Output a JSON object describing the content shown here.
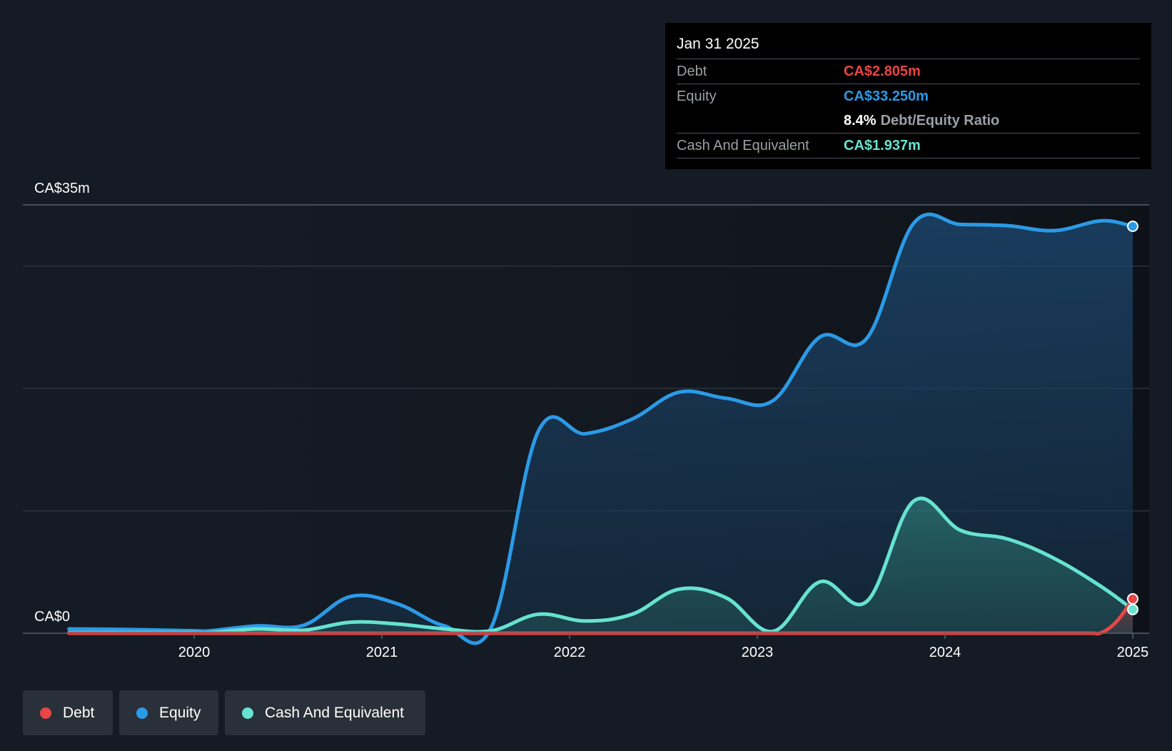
{
  "chart_data": {
    "type": "area",
    "y_axis": {
      "top_label": "CA$35m",
      "bottom_label": "CA$0",
      "ylim": [
        0,
        35
      ]
    },
    "x_ticks": [
      "2020",
      "2021",
      "2022",
      "2023",
      "2024",
      "2025"
    ],
    "grid": true,
    "series": [
      {
        "name": "Debt",
        "color": "#e84545",
        "points": [
          [
            "2019-05",
            0.0
          ],
          [
            "2020-01",
            0.0
          ],
          [
            "2020-05",
            0.0
          ],
          [
            "2020-09",
            0.0
          ],
          [
            "2021-01",
            0.0
          ],
          [
            "2021-05",
            0.0
          ],
          [
            "2021-09",
            0.0
          ],
          [
            "2022-01",
            0.0
          ],
          [
            "2022-05",
            0.0
          ],
          [
            "2022-09",
            0.0
          ],
          [
            "2023-01",
            0.0
          ],
          [
            "2023-05",
            0.0
          ],
          [
            "2023-09",
            0.0
          ],
          [
            "2024-01",
            0.0
          ],
          [
            "2024-05",
            0.0
          ],
          [
            "2024-10",
            0.0
          ],
          [
            "2024-11",
            0.05
          ],
          [
            "2024-12",
            1.0
          ],
          [
            "2025-01",
            2.805
          ]
        ]
      },
      {
        "name": "Equity",
        "color": "#2b9ae6",
        "points": [
          [
            "2019-05",
            0.35
          ],
          [
            "2019-09",
            0.3
          ],
          [
            "2020-01",
            0.2
          ],
          [
            "2020-02",
            0.2
          ],
          [
            "2020-05",
            0.6
          ],
          [
            "2020-08",
            0.65
          ],
          [
            "2020-11",
            3.0
          ],
          [
            "2021-02",
            2.4
          ],
          [
            "2021-05",
            0.6
          ],
          [
            "2021-08",
            0.5
          ],
          [
            "2021-11",
            16.5
          ],
          [
            "2022-02",
            16.3
          ],
          [
            "2022-05",
            17.5
          ],
          [
            "2022-08",
            19.7
          ],
          [
            "2022-11",
            19.2
          ],
          [
            "2023-02",
            19.0
          ],
          [
            "2023-05",
            24.2
          ],
          [
            "2023-08",
            24.1
          ],
          [
            "2023-11",
            33.5
          ],
          [
            "2024-02",
            33.4
          ],
          [
            "2024-05",
            33.3
          ],
          [
            "2024-08",
            32.9
          ],
          [
            "2024-11",
            33.7
          ],
          [
            "2025-01",
            33.25
          ]
        ]
      },
      {
        "name": "Cash And Equivalent",
        "color": "#66e3d0",
        "points": [
          [
            "2019-05",
            0.05
          ],
          [
            "2019-09",
            0.05
          ],
          [
            "2020-01",
            0.05
          ],
          [
            "2020-02",
            0.05
          ],
          [
            "2020-05",
            0.35
          ],
          [
            "2020-08",
            0.25
          ],
          [
            "2020-11",
            0.9
          ],
          [
            "2021-02",
            0.75
          ],
          [
            "2021-05",
            0.35
          ],
          [
            "2021-08",
            0.2
          ],
          [
            "2021-11",
            1.55
          ],
          [
            "2022-02",
            1.0
          ],
          [
            "2022-05",
            1.55
          ],
          [
            "2022-08",
            3.6
          ],
          [
            "2022-11",
            2.9
          ],
          [
            "2023-02",
            0.15
          ],
          [
            "2023-05",
            4.2
          ],
          [
            "2023-08",
            2.6
          ],
          [
            "2023-11",
            10.8
          ],
          [
            "2024-02",
            8.4
          ],
          [
            "2024-05",
            7.7
          ],
          [
            "2024-08",
            6.1
          ],
          [
            "2024-11",
            3.8
          ],
          [
            "2025-01",
            1.937
          ]
        ]
      }
    ],
    "tooltip": {
      "date": "Jan 31 2025",
      "debt_label": "Debt",
      "debt_value": "CA$2.805m",
      "equity_label": "Equity",
      "equity_value": "CA$33.250m",
      "ratio_value": "8.4%",
      "ratio_label": "Debt/Equity Ratio",
      "cash_label": "Cash And Equivalent",
      "cash_value": "CA$1.937m"
    },
    "legend": [
      {
        "label": "Debt",
        "color": "#e84545"
      },
      {
        "label": "Equity",
        "color": "#2b9ae6"
      },
      {
        "label": "Cash And Equivalent",
        "color": "#66e3d0"
      }
    ]
  }
}
